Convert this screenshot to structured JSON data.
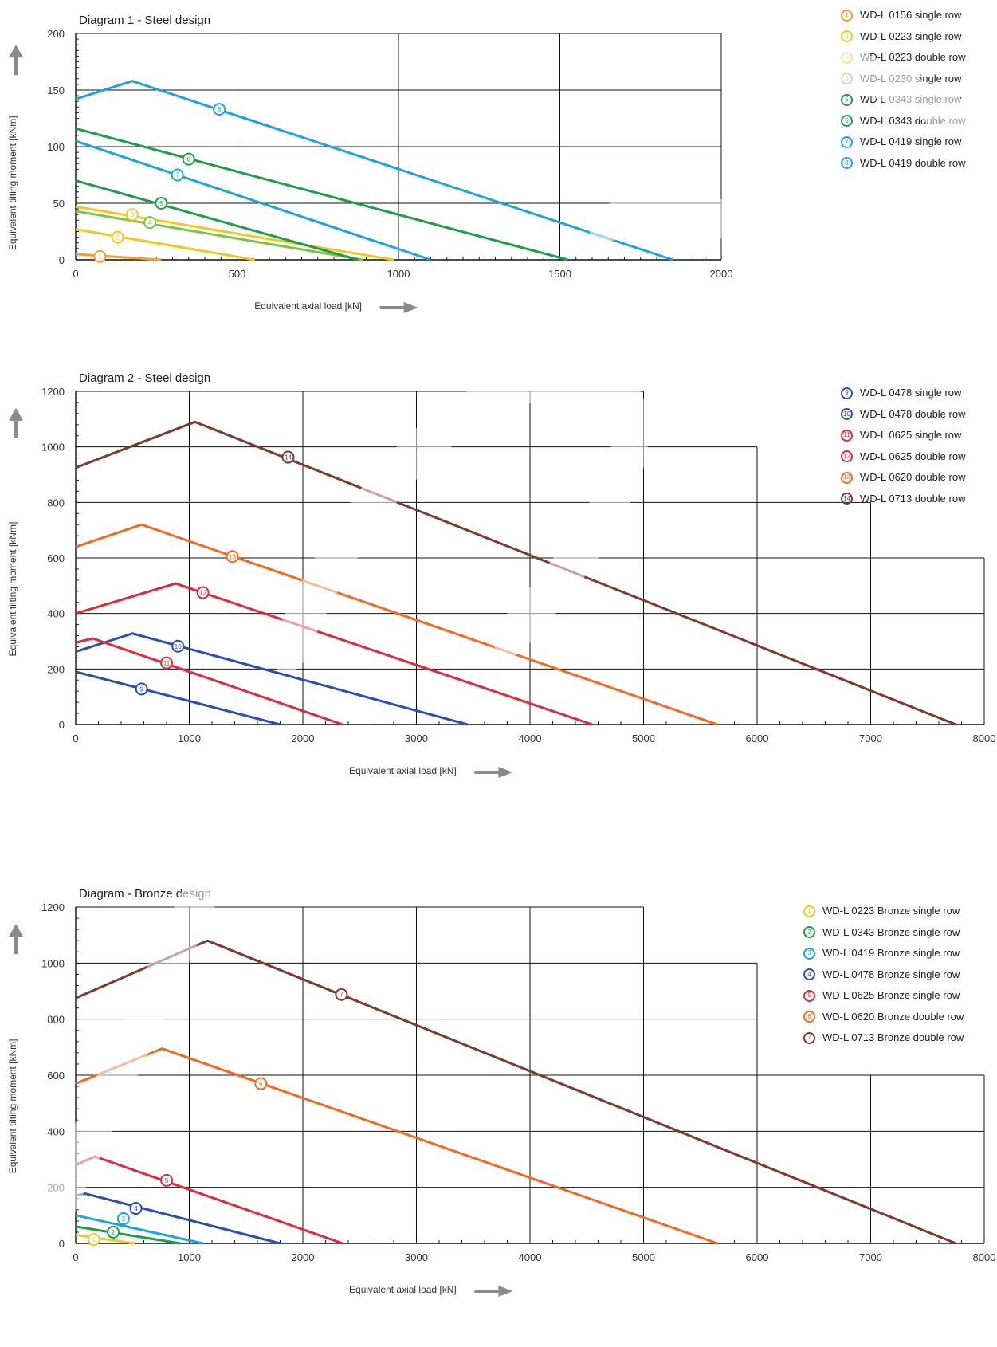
{
  "chart_data": [
    {
      "type": "line",
      "title": "Diagram 1 - Steel design",
      "xlabel": "Equivalent axial load [kN]",
      "ylabel": "Equivalent tilting moment [kNm]",
      "xlim": [
        0,
        2000
      ],
      "ylim": [
        0,
        200
      ],
      "xticks": [
        0,
        500,
        1000,
        1500,
        2000
      ],
      "yticks": [
        0,
        50,
        100,
        150,
        200
      ],
      "grid": true,
      "legend_position": "top-right",
      "series": [
        {
          "marker": "1",
          "name": "WD-L 0156 single row",
          "color": "#f0a030",
          "points": [
            [
              0,
              5
            ],
            [
              265,
              0
            ]
          ],
          "marker_at": [
            75,
            3
          ]
        },
        {
          "marker": "2",
          "name": "WD-L 0223 single row",
          "color": "#f2c81e",
          "points": [
            [
              0,
              27
            ],
            [
              555,
              0
            ]
          ],
          "marker_at": [
            130,
            20
          ]
        },
        {
          "marker": "3",
          "name": "WD-L 0223 double row",
          "color": "#f2c81e",
          "points": [
            [
              0,
              47
            ],
            [
              985,
              0
            ]
          ],
          "marker_at": [
            175,
            40
          ]
        },
        {
          "marker": "4",
          "name": "WD-L 0230 single row",
          "color": "#7ec24a",
          "points": [
            [
              0,
              43
            ],
            [
              890,
              0
            ]
          ],
          "marker_at": [
            230,
            33
          ]
        },
        {
          "marker": "5",
          "name": "WD-L 0343 single row",
          "color": "#1f9e4a",
          "points": [
            [
              0,
              70
            ],
            [
              875,
              0
            ]
          ],
          "marker_at": [
            265,
            50
          ]
        },
        {
          "marker": "6",
          "name": "WD-L 0343 double row",
          "color": "#1f9e4a",
          "points": [
            [
              0,
              116
            ],
            [
              1525,
              0
            ]
          ],
          "marker_at": [
            350,
            89
          ]
        },
        {
          "marker": "7",
          "name": "WD-L 0419 single row",
          "color": "#1aa6dd",
          "points": [
            [
              0,
              105
            ],
            [
              1100,
              0
            ]
          ],
          "marker_at": [
            315,
            75
          ]
        },
        {
          "marker": "8",
          "name": "WD-L 0419 double row",
          "color": "#1aa6dd",
          "points": [
            [
              0,
              142
            ],
            [
              175,
              158
            ],
            [
              1850,
              0
            ]
          ],
          "marker_at": [
            445,
            133
          ]
        }
      ]
    },
    {
      "type": "line",
      "title": "Diagram 2 - Steel design",
      "xlabel": "Equivalent axial load [kN]",
      "ylabel": "Equivalent tilting moment [kNm]",
      "xlim": [
        0,
        8000
      ],
      "ylim": [
        0,
        1200
      ],
      "xticks": [
        0,
        1000,
        2000,
        3000,
        4000,
        5000,
        6000,
        7000,
        8000
      ],
      "yticks": [
        0,
        200,
        400,
        600,
        800,
        1000,
        1200
      ],
      "grid_steps": [
        [
          1200,
          5000
        ],
        [
          1000,
          6000
        ],
        [
          800,
          7000
        ],
        [
          600,
          8000
        ]
      ],
      "legend_position": "top-right",
      "series": [
        {
          "marker": "9",
          "name": "WD-L 0478 single row",
          "color": "#2a4fb0",
          "points": [
            [
              0,
              190
            ],
            [
              1800,
              0
            ]
          ],
          "marker_at": [
            580,
            128
          ]
        },
        {
          "marker": "10",
          "name": "WD-L 0478 double row",
          "color": "#2a4fb0",
          "points": [
            [
              0,
              262
            ],
            [
              500,
              328
            ],
            [
              3450,
              0
            ]
          ],
          "marker_at": [
            900,
            282
          ]
        },
        {
          "marker": "11",
          "name": "WD-L 0625 single row",
          "color": "#e3283a",
          "points": [
            [
              0,
              295
            ],
            [
              150,
              310
            ],
            [
              2350,
              0
            ]
          ],
          "marker_at": [
            800,
            222
          ]
        },
        {
          "marker": "12",
          "name": "WD-L 0625 double row",
          "color": "#e3283a",
          "points": [
            [
              0,
              400
            ],
            [
              880,
              508
            ],
            [
              4550,
              0
            ]
          ],
          "marker_at": [
            1120,
            475
          ]
        },
        {
          "marker": "13",
          "name": "WD-L 0620 double row",
          "color": "#f26a22",
          "points": [
            [
              0,
              640
            ],
            [
              580,
              720
            ],
            [
              5650,
              0
            ]
          ],
          "marker_at": [
            1380,
            605
          ]
        },
        {
          "marker": "14",
          "name": "WD-L 0713 double row",
          "color": "#7d3a2e",
          "points": [
            [
              0,
              925
            ],
            [
              1050,
              1090
            ],
            [
              7750,
              0
            ]
          ],
          "marker_at": [
            1870,
            963
          ]
        }
      ]
    },
    {
      "type": "line",
      "title": "Diagram - Bronze design",
      "xlabel": "Equivalent axial load [kN]",
      "ylabel": "Equivalent tilting moment [kNm]",
      "xlim": [
        0,
        8000
      ],
      "ylim": [
        0,
        1200
      ],
      "xticks": [
        0,
        1000,
        2000,
        3000,
        4000,
        5000,
        6000,
        7000,
        8000
      ],
      "yticks": [
        0,
        200,
        400,
        600,
        800,
        1000,
        1200
      ],
      "grid_steps": [
        [
          1200,
          5000
        ],
        [
          1000,
          6000
        ],
        [
          800,
          6000
        ],
        [
          600,
          8000
        ]
      ],
      "legend_position": "top-right",
      "series": [
        {
          "marker": "1",
          "name": "WD-L 0223 Bronze single row",
          "color": "#f2c81e",
          "points": [
            [
              0,
              30
            ],
            [
              520,
              0
            ]
          ],
          "marker_at": [
            160,
            14
          ]
        },
        {
          "marker": "2",
          "name": "WD-L 0343 Bronze single row",
          "color": "#1f9e4a",
          "points": [
            [
              0,
              60
            ],
            [
              920,
              0
            ]
          ],
          "marker_at": [
            330,
            40
          ]
        },
        {
          "marker": "3",
          "name": "WD-L 0419 Bronze single row",
          "color": "#1aa6dd",
          "points": [
            [
              0,
              100
            ],
            [
              1120,
              0
            ]
          ],
          "marker_at": [
            420,
            88
          ]
        },
        {
          "marker": "4",
          "name": "WD-L 0478 Bronze single row",
          "color": "#2a4fb0",
          "points": [
            [
              0,
              170
            ],
            [
              80,
              178
            ],
            [
              1800,
              0
            ]
          ],
          "marker_at": [
            530,
            125
          ]
        },
        {
          "marker": "5",
          "name": "WD-L 0625 Bronze single row",
          "color": "#e3283a",
          "points": [
            [
              0,
              280
            ],
            [
              170,
              310
            ],
            [
              2350,
              0
            ]
          ],
          "marker_at": [
            800,
            225
          ]
        },
        {
          "marker": "6",
          "name": "WD-L 0620 Bronze double row",
          "color": "#f26a22",
          "points": [
            [
              0,
              570
            ],
            [
              760,
              695
            ],
            [
              5650,
              0
            ]
          ],
          "marker_at": [
            1630,
            570
          ]
        },
        {
          "marker": "7",
          "name": "WD-L 0713 Bronze double row",
          "color": "#7d3a2e",
          "points": [
            [
              0,
              875
            ],
            [
              1160,
              1080
            ],
            [
              7750,
              0
            ]
          ],
          "marker_at": [
            2340,
            888
          ]
        }
      ]
    }
  ]
}
